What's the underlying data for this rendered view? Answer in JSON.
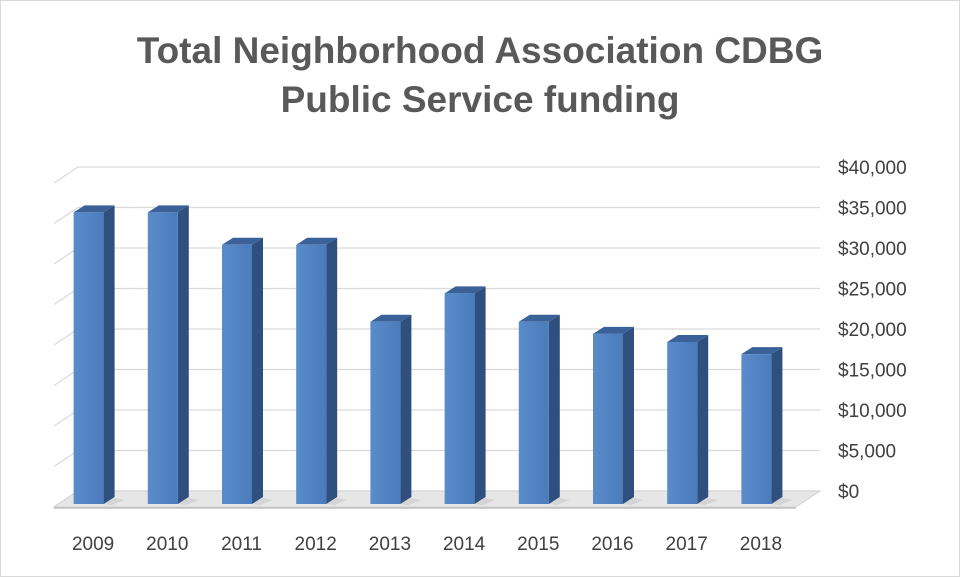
{
  "chart_data": {
    "type": "bar",
    "title_lines": [
      "Total Neighborhood Association CDBG",
      "Public Service funding"
    ],
    "categories": [
      "2009",
      "2010",
      "2011",
      "2012",
      "2013",
      "2014",
      "2015",
      "2016",
      "2017",
      "2018"
    ],
    "values": [
      36000,
      36000,
      32000,
      32000,
      22500,
      26000,
      22500,
      21000,
      20000,
      18500
    ],
    "y_tick_labels": [
      "$0",
      "$5,000",
      "$10,000",
      "$15,000",
      "$20,000",
      "$25,000",
      "$30,000",
      "$35,000",
      "$40,000"
    ],
    "ylim": [
      0,
      40000
    ],
    "y_axis_position": "right",
    "grid": true,
    "style": "3d-column",
    "bar_color": "#4f81bd",
    "legend": "none"
  }
}
